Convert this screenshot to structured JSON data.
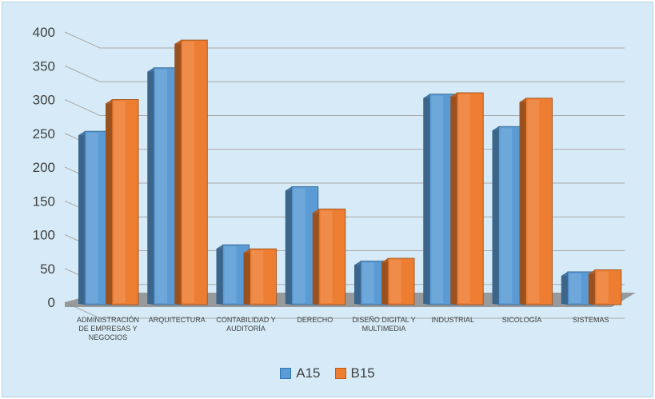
{
  "chart_data": {
    "type": "bar",
    "categories": [
      [
        "ADMINISTRACIÓN",
        "DE EMPRESAS Y",
        "NEGOCIOS"
      ],
      [
        "ARQUITECTURA"
      ],
      [
        "CONTABILIDAD Y",
        "AUDITORÍA"
      ],
      [
        "DERECHO"
      ],
      [
        "DISEÑO DIGITAL Y",
        "MULTIMEDIA"
      ],
      [
        "INDUSTRIAL"
      ],
      [
        "SICOLOGÍA"
      ],
      [
        "SISTEMAS"
      ]
    ],
    "series": [
      {
        "name": "A15",
        "color": "#5b9bd5",
        "values": [
          253,
          347,
          85,
          171,
          61,
          308,
          260,
          45
        ]
      },
      {
        "name": "B15",
        "color": "#ed7d31",
        "values": [
          300,
          388,
          79,
          138,
          65,
          310,
          302,
          48
        ]
      }
    ],
    "yticks": [
      "0",
      "50",
      "100",
      "150",
      "200",
      "250",
      "300",
      "350",
      "400"
    ],
    "ylim": [
      0,
      400
    ],
    "grid": true,
    "legend": "bottom"
  }
}
